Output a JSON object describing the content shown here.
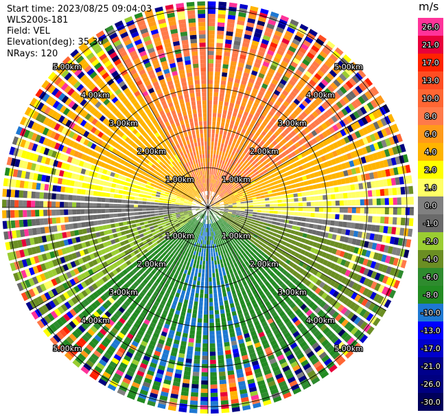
{
  "header": {
    "start_time": "Start time: 2023/08/25 09:04:03",
    "station": "WLS200s-181",
    "field": "Field: VEL",
    "elevation": "Elevation(deg): 35.30",
    "nrays": "NRays: 120"
  },
  "colorbar": {
    "unit": "m/s",
    "levels": [
      {
        "label": "26.0",
        "color": "#ff3399"
      },
      {
        "label": "21.0",
        "color": "#e8003a"
      },
      {
        "label": "17.0",
        "color": "#ff2200"
      },
      {
        "label": "13.0",
        "color": "#ff4d22"
      },
      {
        "label": "10.0",
        "color": "#ff6633"
      },
      {
        "label": "8.0",
        "color": "#ff7a4a"
      },
      {
        "label": "6.0",
        "color": "#ff9a1a"
      },
      {
        "label": "4.0",
        "color": "#ffb400"
      },
      {
        "label": "2.0",
        "color": "#ffff00"
      },
      {
        "label": "1.0",
        "color": "#ffff66"
      },
      {
        "label": "0.0",
        "color": "#808080"
      },
      {
        "label": "-1.0",
        "color": "#6a6a6a"
      },
      {
        "label": "-2.0",
        "color": "#9acd32"
      },
      {
        "label": "-4.0",
        "color": "#6b8e23"
      },
      {
        "label": "-6.0",
        "color": "#2e8b2e"
      },
      {
        "label": "-8.0",
        "color": "#228b22"
      },
      {
        "label": "-10.0",
        "color": "#1e78d2"
      },
      {
        "label": "-13.0",
        "color": "#0000ff"
      },
      {
        "label": "-17.0",
        "color": "#0000cd"
      },
      {
        "label": "-21.0",
        "color": "#00008b"
      },
      {
        "label": "-26.0",
        "color": "#000080"
      },
      {
        "label": "-30.0",
        "color": "#00005a"
      }
    ]
  },
  "chart_data": {
    "type": "heatmap",
    "projection": "polar (PPI scan)",
    "field": "VEL",
    "nrays": 120,
    "range_rings_km": [
      "1.00km",
      "2.00km",
      "3.00km",
      "4.00km",
      "5.00km"
    ],
    "sectors_deg": [
      {
        "from_deg": 0,
        "to_deg": 60,
        "velocity_ms": 8
      },
      {
        "from_deg": 60,
        "to_deg": 80,
        "velocity_ms": 5
      },
      {
        "from_deg": 80,
        "to_deg": 95,
        "velocity_ms": 1.5
      },
      {
        "from_deg": 95,
        "to_deg": 105,
        "velocity_ms": 0
      },
      {
        "from_deg": 105,
        "to_deg": 130,
        "velocity_ms": -3
      },
      {
        "from_deg": 130,
        "to_deg": 165,
        "velocity_ms": -6
      },
      {
        "from_deg": 165,
        "to_deg": 200,
        "velocity_ms": -8
      },
      {
        "from_deg": 200,
        "to_deg": 235,
        "velocity_ms": -6
      },
      {
        "from_deg": 235,
        "to_deg": 260,
        "velocity_ms": -2
      },
      {
        "from_deg": 260,
        "to_deg": 275,
        "velocity_ms": 0
      },
      {
        "from_deg": 275,
        "to_deg": 290,
        "velocity_ms": 2
      },
      {
        "from_deg": 290,
        "to_deg": 330,
        "velocity_ms": 5
      },
      {
        "from_deg": 330,
        "to_deg": 360,
        "velocity_ms": 8
      }
    ]
  }
}
